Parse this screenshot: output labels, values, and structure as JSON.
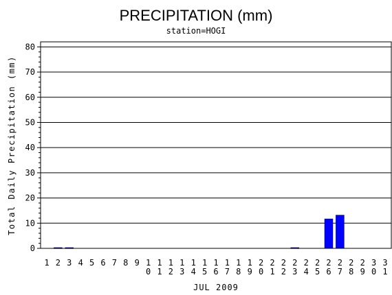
{
  "chart_data": {
    "type": "bar",
    "title": "PRECIPITATION (mm)",
    "subtitle": "station=HOGI",
    "xlabel": "JUL 2009",
    "ylabel": "Total Daily Precipitation (mm)",
    "ylim": [
      0,
      82
    ],
    "yticks": [
      0,
      10,
      20,
      30,
      40,
      50,
      60,
      70,
      80
    ],
    "grid": true,
    "bar_color": "#0000ff",
    "categories": [
      "1",
      "2",
      "3",
      "4",
      "5",
      "6",
      "7",
      "8",
      "9",
      "10",
      "11",
      "12",
      "13",
      "14",
      "15",
      "16",
      "17",
      "18",
      "19",
      "20",
      "21",
      "22",
      "23",
      "24",
      "25",
      "26",
      "27",
      "28",
      "29",
      "30",
      "31"
    ],
    "values": [
      0,
      0.3,
      0.3,
      0,
      0,
      0,
      0,
      0,
      0,
      0,
      0,
      0,
      0,
      0,
      0,
      0,
      0,
      0,
      0,
      0,
      0,
      0,
      0.3,
      0,
      0,
      11.7,
      13.2,
      0,
      0,
      0,
      0
    ]
  }
}
